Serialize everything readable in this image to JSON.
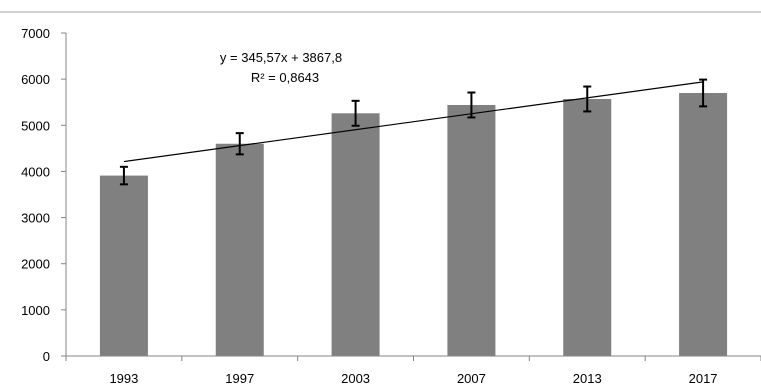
{
  "chart_data": {
    "type": "bar",
    "categories": [
      "1993",
      "1997",
      "2003",
      "2007",
      "2013",
      "2017"
    ],
    "values": [
      3910,
      4600,
      5260,
      5440,
      5570,
      5700
    ],
    "error": [
      190,
      230,
      270,
      270,
      270,
      290
    ],
    "ylim": [
      0,
      7000
    ],
    "yticks": [
      0,
      1000,
      2000,
      3000,
      4000,
      5000,
      6000,
      7000
    ],
    "grid": false,
    "legend": "none",
    "trendline": {
      "type": "linear",
      "slope": 345.57,
      "intercept": 3867.8,
      "equation_label": "y = 345,57x + 3867,8",
      "r2_label": "R² = 0,8643"
    },
    "colors": {
      "bar": "#808080",
      "error_bar": "#000000",
      "trendline": "#000000",
      "axis": "#868686",
      "top_rule": "#a0a0a0"
    }
  }
}
